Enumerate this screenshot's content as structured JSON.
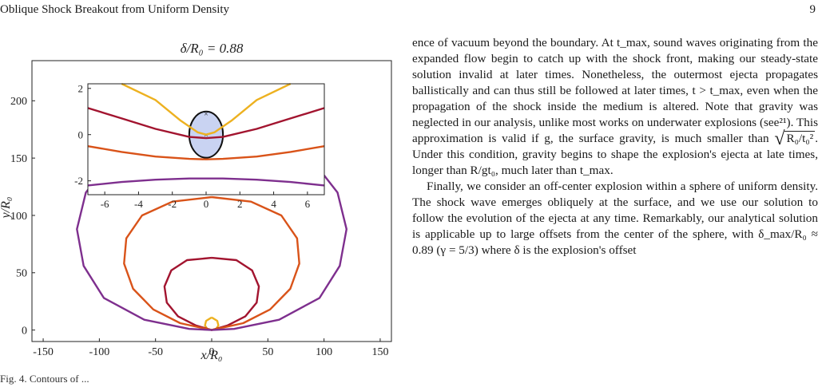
{
  "header": {
    "running_title": "Oblique Shock Breakout from Uniform Density",
    "page_number": "9"
  },
  "figure": {
    "title": "δ/R₀ = 0.88",
    "xlabel": "x/R₀",
    "ylabel": "y/R₀",
    "caption_fragment": "Fig. 4.  Contours of ..."
  },
  "chart_data": [
    {
      "type": "line",
      "title": "δ/R₀ = 0.88",
      "xlabel": "x/R₀",
      "ylabel": "y/R₀",
      "xlim": [
        -160,
        160
      ],
      "ylim": [
        -10,
        235
      ],
      "xticks": [
        -150,
        -100,
        -50,
        0,
        50,
        100,
        150
      ],
      "yticks": [
        0,
        50,
        100,
        150,
        200
      ],
      "grid": false,
      "series": [
        {
          "color": "#edb120",
          "points": [
            [
              0,
              11
            ],
            [
              -5,
              8
            ],
            [
              -6,
              4
            ],
            [
              -4,
              1
            ],
            [
              0,
              0
            ],
            [
              4,
              1
            ],
            [
              6,
              4
            ],
            [
              5,
              8
            ],
            [
              0,
              11
            ]
          ]
        },
        {
          "color": "#a2142f",
          "points": [
            [
              0,
              63
            ],
            [
              -22,
              61
            ],
            [
              -36,
              52
            ],
            [
              -42,
              38
            ],
            [
              -40,
              24
            ],
            [
              -30,
              12
            ],
            [
              -14,
              4
            ],
            [
              0,
              0
            ],
            [
              14,
              4
            ],
            [
              30,
              12
            ],
            [
              40,
              24
            ],
            [
              42,
              38
            ],
            [
              36,
              52
            ],
            [
              22,
              61
            ],
            [
              0,
              63
            ]
          ]
        },
        {
          "color": "#d95319",
          "points": [
            [
              0,
              116
            ],
            [
              -35,
              112
            ],
            [
              -62,
              100
            ],
            [
              -76,
              80
            ],
            [
              -78,
              58
            ],
            [
              -70,
              36
            ],
            [
              -52,
              18
            ],
            [
              -28,
              6
            ],
            [
              0,
              0
            ],
            [
              28,
              6
            ],
            [
              52,
              18
            ],
            [
              70,
              36
            ],
            [
              78,
              58
            ],
            [
              76,
              80
            ],
            [
              62,
              100
            ],
            [
              35,
              112
            ],
            [
              0,
              116
            ]
          ]
        },
        {
          "color": "#7e2f8e",
          "points": [
            [
              0,
              175
            ],
            [
              -48,
              169
            ],
            [
              -88,
              150
            ],
            [
              -112,
              120
            ],
            [
              -120,
              88
            ],
            [
              -114,
              56
            ],
            [
              -96,
              28
            ],
            [
              -60,
              9
            ],
            [
              -20,
              1
            ],
            [
              0,
              0
            ],
            [
              20,
              1
            ],
            [
              60,
              9
            ],
            [
              96,
              28
            ],
            [
              114,
              56
            ],
            [
              120,
              88
            ],
            [
              112,
              120
            ],
            [
              88,
              150
            ],
            [
              48,
              169
            ],
            [
              0,
              175
            ]
          ]
        }
      ]
    },
    {
      "type": "line",
      "title": "",
      "xlim": [
        -7,
        7
      ],
      "ylim": [
        -2.6,
        2.2
      ],
      "xticks": [
        -6,
        -4,
        -2,
        0,
        2,
        4,
        6
      ],
      "yticks": [
        -2,
        0,
        2
      ],
      "grid": false,
      "series": [
        {
          "color": "#edb120",
          "points": [
            [
              -5,
              2.2
            ],
            [
              -3,
              1.5
            ],
            [
              -1.5,
              0.6
            ],
            [
              -0.5,
              0.1
            ],
            [
              0,
              0
            ],
            [
              0.5,
              0.1
            ],
            [
              1.5,
              0.6
            ],
            [
              3,
              1.5
            ],
            [
              5,
              2.2
            ]
          ]
        },
        {
          "color": "#a2142f",
          "points": [
            [
              -7,
              1.15
            ],
            [
              -5,
              0.7
            ],
            [
              -3,
              0.25
            ],
            [
              -1,
              -0.1
            ],
            [
              0,
              -0.15
            ],
            [
              1,
              -0.1
            ],
            [
              3,
              0.25
            ],
            [
              5,
              0.7
            ],
            [
              7,
              1.15
            ]
          ]
        },
        {
          "color": "#d95319",
          "points": [
            [
              -7,
              -0.5
            ],
            [
              -5,
              -0.75
            ],
            [
              -3,
              -0.95
            ],
            [
              -1,
              -1.05
            ],
            [
              0,
              -1.07
            ],
            [
              1,
              -1.05
            ],
            [
              3,
              -0.95
            ],
            [
              5,
              -0.75
            ],
            [
              7,
              -0.5
            ]
          ]
        },
        {
          "color": "#7e2f8e",
          "points": [
            [
              -7,
              -2.2
            ],
            [
              -5,
              -2.05
            ],
            [
              -3,
              -1.95
            ],
            [
              -1,
              -1.9
            ],
            [
              0,
              -1.9
            ],
            [
              1,
              -1.9
            ],
            [
              3,
              -1.95
            ],
            [
              5,
              -2.05
            ],
            [
              7,
              -2.2
            ]
          ]
        }
      ],
      "sphere": {
        "center": [
          0,
          0
        ],
        "radius": 1
      }
    }
  ],
  "body": {
    "paragraph1": "ence of vacuum beyond the boundary. At t_max, sound waves originating from the expanded flow begin to catch up with the shock front, making our steady-state solution invalid at later times. Nonetheless, the outermost ejecta propagates ballistically and can thus still be followed at later times, t > t_max, even when the propagation of the shock inside the medium is altered. Note that gravity was neglected in our analysis, unlike most works on underwater explosions (see²¹). This approximation is valid if g, the surface gravity, is much smaller than",
    "sqrt_expr": "R₀/t₀²",
    "paragraph1_end": ". Under this condition, gravity begins to shape the explosion's ejecta at late times, longer than R/gt₀, much later than t_max.",
    "paragraph2": "Finally, we consider an off-center explosion within a sphere of uniform density. The shock wave emerges obliquely at the surface, and we use our solution to follow the evolution of the ejecta at any time. Remarkably, our analytical solution is applicable up to large offsets from the center of the sphere, with δ_max/R₀ ≈ 0.89 (γ = 5/3) where δ is the explosion's offset"
  }
}
